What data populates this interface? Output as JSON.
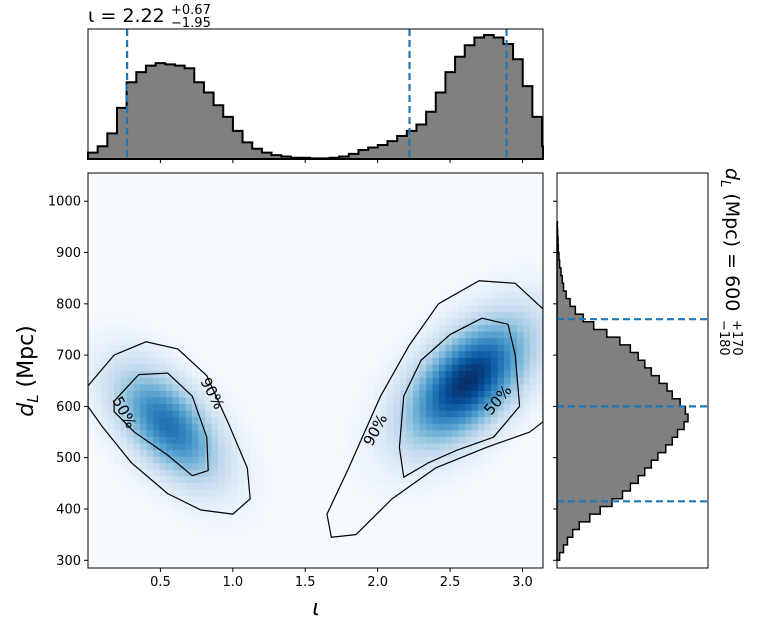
{
  "chart_data": [
    {
      "panel": "top-marginal",
      "type": "histogram",
      "title": {
        "symbol": "ι",
        "eq": " = ",
        "value": "2.22",
        "plus": "+0.67",
        "minus": "−1.95"
      },
      "x_param": "ι",
      "xlim": [
        0.0,
        3.1416
      ],
      "bin_edges_start": 0.0,
      "bin_width": 0.0667,
      "density": [
        0.05,
        0.1,
        0.2,
        0.4,
        0.6,
        0.68,
        0.73,
        0.75,
        0.74,
        0.73,
        0.71,
        0.6,
        0.52,
        0.42,
        0.33,
        0.22,
        0.13,
        0.08,
        0.05,
        0.03,
        0.02,
        0.01,
        0.01,
        0.005,
        0.005,
        0.01,
        0.02,
        0.04,
        0.07,
        0.09,
        0.11,
        0.14,
        0.18,
        0.22,
        0.27,
        0.37,
        0.52,
        0.68,
        0.8,
        0.89,
        0.95,
        0.97,
        0.95,
        0.9,
        0.78,
        0.57,
        0.33,
        0.1
      ],
      "quantile_lines": [
        0.27,
        2.22,
        2.89
      ],
      "fill_color": "#808080",
      "line_color": "#1f77b4"
    },
    {
      "panel": "joint",
      "type": "heatmap",
      "xlabel": "ι",
      "ylabel": {
        "base": "d",
        "sub": "L",
        "rest": " (Mpc)"
      },
      "xlim": [
        0.0,
        3.1416
      ],
      "ylim": [
        285,
        1055
      ],
      "xticks": [
        "0.5",
        "1.0",
        "1.5",
        "2.0",
        "2.5",
        "3.0"
      ],
      "xtick_values": [
        0.5,
        1.0,
        1.5,
        2.0,
        2.5,
        3.0
      ],
      "yticks": [
        "300",
        "400",
        "500",
        "600",
        "700",
        "800",
        "900",
        "1000"
      ],
      "ytick_values": [
        300,
        400,
        500,
        600,
        700,
        800,
        900,
        1000
      ],
      "colormap": "Blues",
      "blobs": [
        {
          "mx": 0.55,
          "my": 565,
          "sx": 0.26,
          "sy": 78,
          "rho": -0.55,
          "w": 0.75
        },
        {
          "mx": 2.62,
          "my": 650,
          "sx": 0.3,
          "sy": 85,
          "rho": 0.55,
          "w": 1.0
        }
      ],
      "contour_labels": [
        "90%",
        "50%",
        "90%",
        "50%"
      ],
      "contours": [
        {
          "label": "90%",
          "points": [
            [
              0.0,
              640
            ],
            [
              0.18,
              700
            ],
            [
              0.4,
              726
            ],
            [
              0.62,
              712
            ],
            [
              0.82,
              660
            ],
            [
              0.98,
              560
            ],
            [
              1.1,
              480
            ],
            [
              1.12,
              420
            ],
            [
              1.0,
              390
            ],
            [
              0.78,
              398
            ],
            [
              0.55,
              430
            ],
            [
              0.3,
              490
            ],
            [
              0.1,
              560
            ],
            [
              0.0,
              600
            ]
          ]
        },
        {
          "label": "50%",
          "points": [
            [
              0.18,
              610
            ],
            [
              0.35,
              662
            ],
            [
              0.55,
              665
            ],
            [
              0.72,
              620
            ],
            [
              0.82,
              540
            ],
            [
              0.83,
              475
            ],
            [
              0.72,
              465
            ],
            [
              0.55,
              505
            ],
            [
              0.32,
              550
            ],
            [
              0.18,
              590
            ]
          ]
        },
        {
          "label": "90%",
          "points": [
            [
              3.1416,
              790
            ],
            [
              2.95,
              840
            ],
            [
              2.7,
              845
            ],
            [
              2.42,
              800
            ],
            [
              2.22,
              720
            ],
            [
              2.02,
              620
            ],
            [
              1.8,
              480
            ],
            [
              1.65,
              390
            ],
            [
              1.68,
              345
            ],
            [
              1.85,
              350
            ],
            [
              2.1,
              420
            ],
            [
              2.4,
              480
            ],
            [
              2.75,
              520
            ],
            [
              3.05,
              550
            ],
            [
              3.1416,
              570
            ]
          ]
        },
        {
          "label": "50%",
          "points": [
            [
              2.95,
              700
            ],
            [
              2.9,
              760
            ],
            [
              2.72,
              772
            ],
            [
              2.5,
              740
            ],
            [
              2.3,
              690
            ],
            [
              2.18,
              620
            ],
            [
              2.15,
              520
            ],
            [
              2.18,
              462
            ],
            [
              2.35,
              490
            ],
            [
              2.55,
              515
            ],
            [
              2.8,
              540
            ],
            [
              2.98,
              600
            ]
          ]
        }
      ]
    },
    {
      "panel": "right-marginal",
      "type": "histogram",
      "title": {
        "base": "d",
        "sub": "L",
        "rest": " (Mpc) = ",
        "value": "600",
        "plus": "+170",
        "minus": "−180"
      },
      "y_param": "d_L",
      "ylim": [
        285,
        1055
      ],
      "bin_edges_start": 300,
      "bin_width": 15,
      "density": [
        0.02,
        0.05,
        0.08,
        0.12,
        0.17,
        0.25,
        0.33,
        0.42,
        0.5,
        0.56,
        0.62,
        0.67,
        0.72,
        0.77,
        0.83,
        0.88,
        0.92,
        0.97,
        1.0,
        0.98,
        0.94,
        0.88,
        0.84,
        0.78,
        0.72,
        0.67,
        0.62,
        0.56,
        0.48,
        0.38,
        0.28,
        0.2,
        0.14,
        0.1,
        0.07,
        0.05,
        0.04,
        0.03,
        0.02,
        0.015,
        0.01,
        0.008,
        0.005,
        0.003
      ],
      "quantile_lines": [
        415,
        600,
        770
      ],
      "fill_color": "#808080",
      "line_color": "#1f77b4"
    }
  ]
}
